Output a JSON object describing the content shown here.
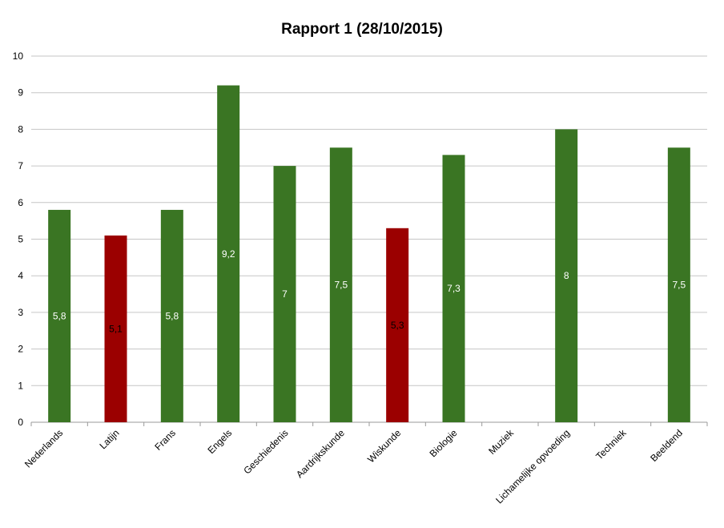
{
  "chart_data": {
    "type": "bar",
    "title": "Rapport 1 (28/10/2015)",
    "xlabel": "",
    "ylabel": "",
    "ylim": [
      0,
      10
    ],
    "yticks": [
      0,
      1,
      2,
      3,
      4,
      5,
      6,
      7,
      8,
      9,
      10
    ],
    "grid": true,
    "legend": "none",
    "categories": [
      "Nederlands",
      "Latijn",
      "Frans",
      "Engels",
      "Geschiedenis",
      "Aardrijkskunde",
      "Wiskunde",
      "Biologie",
      "Muziek",
      "Lichamelijke opvoeding",
      "Techniek",
      "Beeldend"
    ],
    "values": [
      5.8,
      5.1,
      5.8,
      9.2,
      7.0,
      7.5,
      5.3,
      7.3,
      null,
      8.0,
      null,
      7.5
    ],
    "data_labels": [
      "5,8",
      "5,1",
      "5,8",
      "9,2",
      "7",
      "7,5",
      "5,3",
      "7,3",
      "",
      "8",
      "",
      "7,5"
    ],
    "pass_threshold": 5.5,
    "colors": {
      "pass": "#3a7523",
      "fail": "#9b0000",
      "grid": "#c6c6c6",
      "axis": "#9a9a9a",
      "pass_label": "#ffffff",
      "fail_label": "#000000"
    }
  }
}
